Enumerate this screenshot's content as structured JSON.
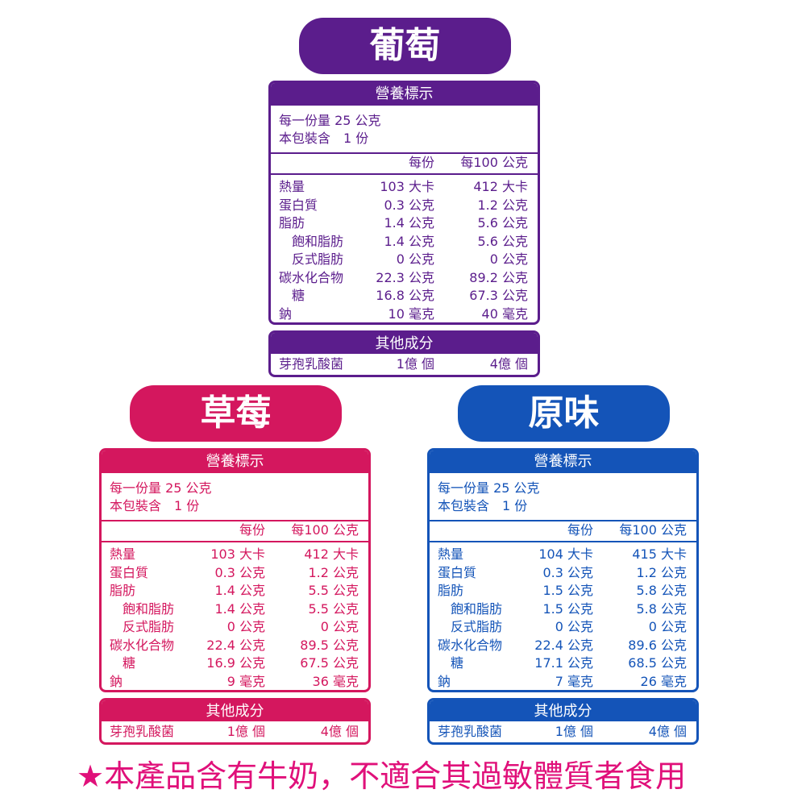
{
  "panels": [
    {
      "title": "葡萄",
      "color": "#5b1d8c",
      "nutrition_header": "營養標示",
      "serving_size": "每一份量 25 公克",
      "servings": "本包裝含　1 份",
      "column_headers": [
        "每份",
        "每100 公克"
      ],
      "rows": [
        [
          "熱量",
          "103 大卡",
          "412 大卡"
        ],
        [
          "蛋白質",
          "0.3 公克",
          "1.2 公克"
        ],
        [
          "脂肪",
          "1.4 公克",
          "5.6 公克"
        ],
        [
          "飽和脂肪",
          "1.4 公克",
          "5.6 公克"
        ],
        [
          "反式脂肪",
          "0 公克",
          "0 公克"
        ],
        [
          "碳水化合物",
          "22.3 公克",
          "89.2 公克"
        ],
        [
          "糖",
          "16.8 公克",
          "67.3 公克"
        ],
        [
          "鈉",
          "10 毫克",
          "40 毫克"
        ]
      ],
      "other_header": "其他成分",
      "other_rows": [
        [
          "芽孢乳酸菌",
          "1億 個",
          "4億 個"
        ]
      ]
    },
    {
      "title": "草莓",
      "color": "#d4175e",
      "nutrition_header": "營養標示",
      "serving_size": "每一份量 25 公克",
      "servings": "本包裝含　1 份",
      "column_headers": [
        "每份",
        "每100 公克"
      ],
      "rows": [
        [
          "熱量",
          "103 大卡",
          "412 大卡"
        ],
        [
          "蛋白質",
          "0.3 公克",
          "1.2 公克"
        ],
        [
          "脂肪",
          "1.4 公克",
          "5.5 公克"
        ],
        [
          "飽和脂肪",
          "1.4 公克",
          "5.5 公克"
        ],
        [
          "反式脂肪",
          "0 公克",
          "0 公克"
        ],
        [
          "碳水化合物",
          "22.4 公克",
          "89.5 公克"
        ],
        [
          "糖",
          "16.9 公克",
          "67.5 公克"
        ],
        [
          "鈉",
          "9 毫克",
          "36 毫克"
        ]
      ],
      "other_header": "其他成分",
      "other_rows": [
        [
          "芽孢乳酸菌",
          "1億 個",
          "4億 個"
        ]
      ]
    },
    {
      "title": "原味",
      "color": "#1454b8",
      "nutrition_header": "營養標示",
      "serving_size": "每一份量 25 公克",
      "servings": "本包裝含　1 份",
      "column_headers": [
        "每份",
        "每100 公克"
      ],
      "rows": [
        [
          "熱量",
          "104 大卡",
          "415 大卡"
        ],
        [
          "蛋白質",
          "0.3 公克",
          "1.2 公克"
        ],
        [
          "脂肪",
          "1.5 公克",
          "5.8 公克"
        ],
        [
          "飽和脂肪",
          "1.5 公克",
          "5.8 公克"
        ],
        [
          "反式脂肪",
          "0 公克",
          "0 公克"
        ],
        [
          "碳水化合物",
          "22.4 公克",
          "89.6 公克"
        ],
        [
          "糖",
          "17.1 公克",
          "68.5 公克"
        ],
        [
          "鈉",
          "7 毫克",
          "26 毫克"
        ]
      ],
      "other_header": "其他成分",
      "other_rows": [
        [
          "芽孢乳酸菌",
          "1億 個",
          "4億 個"
        ]
      ]
    }
  ],
  "footer": {
    "star": "★",
    "text": "本產品含有牛奶，不適合其過敏體質者食用"
  }
}
